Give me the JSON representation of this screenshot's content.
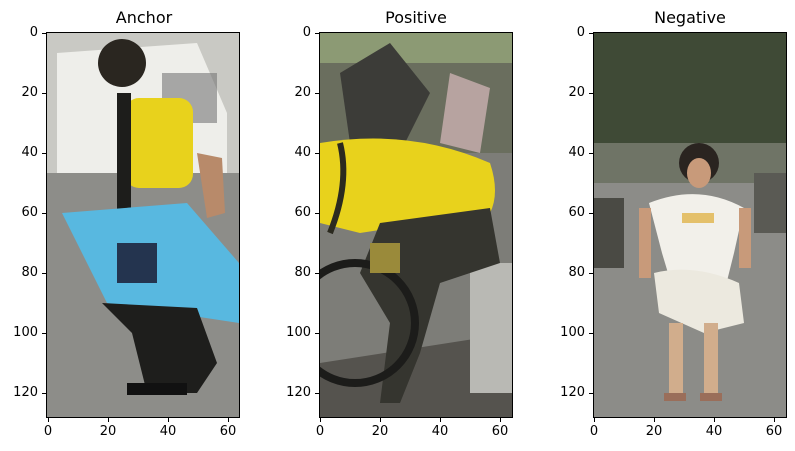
{
  "panels": [
    {
      "title": "Anchor"
    },
    {
      "title": "Positive"
    },
    {
      "title": "Negative"
    }
  ],
  "axes": {
    "y_ticks": [
      "0",
      "20",
      "40",
      "60",
      "80",
      "100",
      "120"
    ],
    "y_values": [
      0,
      20,
      40,
      60,
      80,
      100,
      120
    ],
    "x_ticks": [
      "0",
      "20",
      "40",
      "60"
    ],
    "x_values": [
      0,
      20,
      40,
      60
    ],
    "image_width": 64,
    "image_height": 128
  },
  "colors": {
    "shirt_yellow": "#e8d21c",
    "bag_blue": "#58b8e0",
    "pavement": "#8a8a86",
    "foliage": "#3f4a36"
  }
}
